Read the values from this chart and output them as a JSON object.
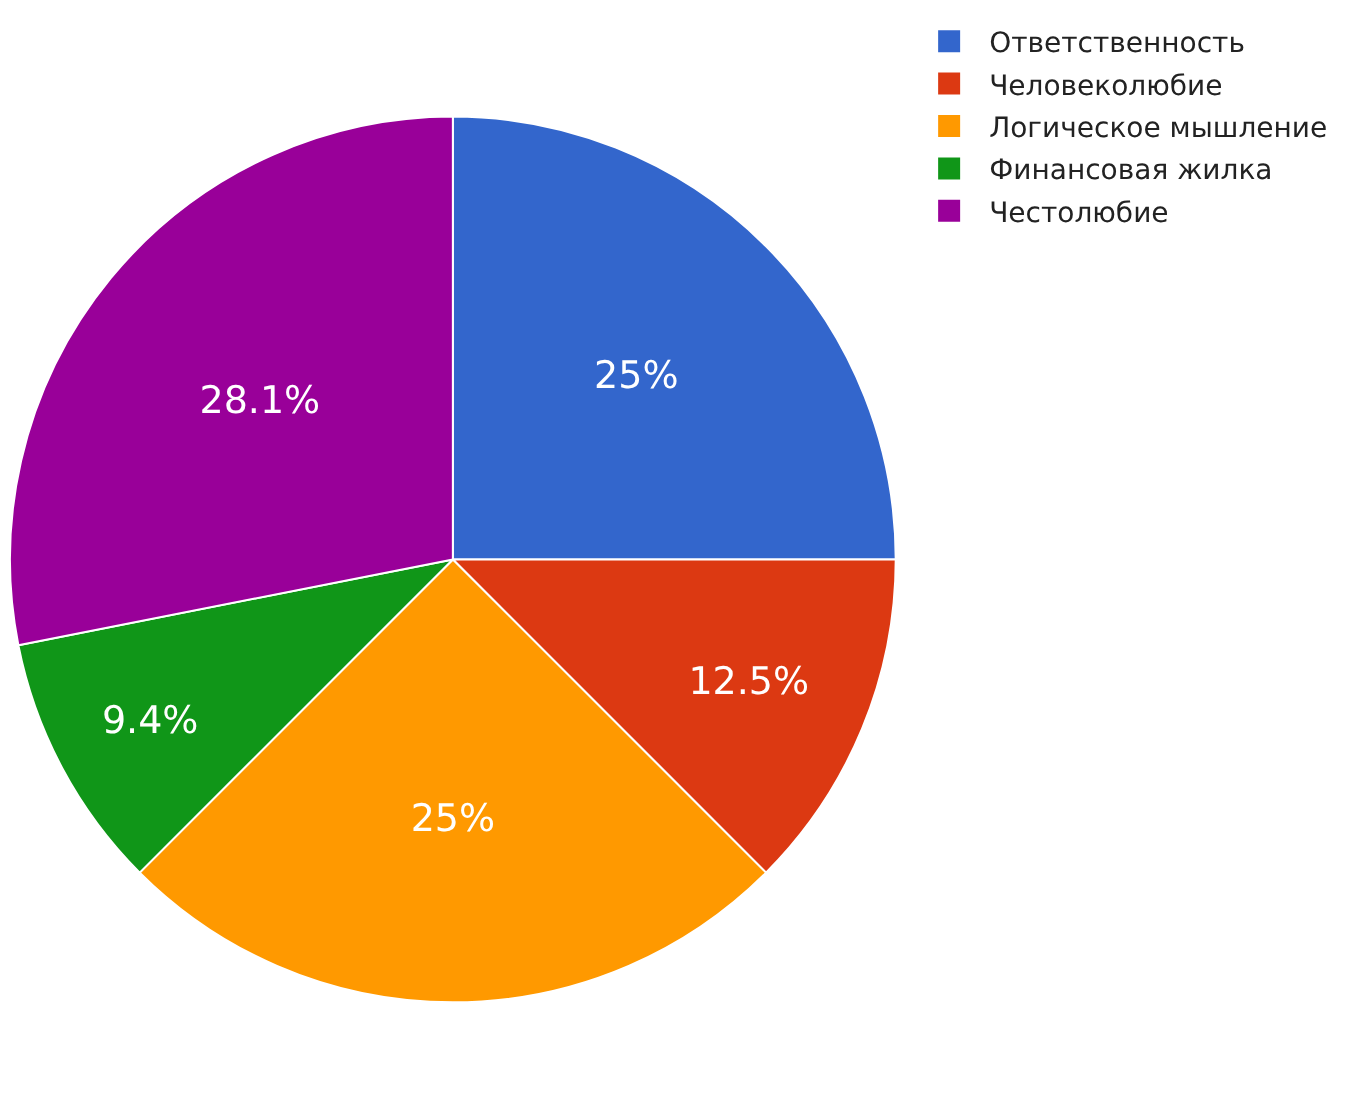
{
  "chart_data": {
    "type": "pie",
    "categories": [
      "Ответственность",
      "Человеколюбие",
      "Логическое мышление",
      "Финансовая жилка",
      "Честолюбие"
    ],
    "values": [
      25,
      12.5,
      25,
      9.4,
      28.1
    ],
    "colors": [
      "#3366cc",
      "#dc3912",
      "#ff9900",
      "#109618",
      "#990099"
    ],
    "value_labels": [
      "25%",
      "12.5%",
      "25%",
      "9.4%",
      "28.1%"
    ],
    "legend": "top right"
  }
}
